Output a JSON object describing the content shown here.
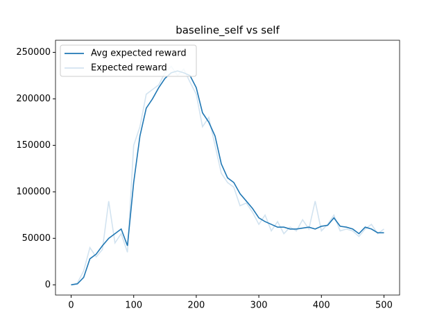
{
  "chart_data": {
    "type": "line",
    "title": "baseline_self vs self",
    "x": [
      0,
      10,
      20,
      30,
      40,
      50,
      60,
      70,
      80,
      90,
      100,
      110,
      120,
      130,
      140,
      150,
      160,
      170,
      180,
      190,
      200,
      210,
      220,
      230,
      240,
      250,
      260,
      270,
      280,
      290,
      300,
      310,
      320,
      330,
      340,
      350,
      360,
      370,
      380,
      390,
      400,
      410,
      420,
      430,
      440,
      450,
      460,
      470,
      480,
      490,
      500
    ],
    "series": [
      {
        "name": "Avg expected reward",
        "color": "#1f77b4",
        "values": [
          0,
          1000,
          8000,
          28000,
          33000,
          42000,
          50000,
          55000,
          60000,
          42000,
          110000,
          160000,
          190000,
          200000,
          212000,
          222000,
          228000,
          230000,
          228000,
          225000,
          212000,
          185000,
          175000,
          160000,
          130000,
          115000,
          110000,
          98000,
          90000,
          82000,
          72000,
          68000,
          65000,
          62000,
          62000,
          60000,
          60000,
          61000,
          62000,
          60000,
          63000,
          64000,
          72000,
          63000,
          62000,
          60000,
          55000,
          62000,
          60000,
          56000,
          56000
        ]
      },
      {
        "name": "Expected reward",
        "color": "#d2e3f0",
        "values": [
          0,
          2000,
          15000,
          40000,
          30000,
          38000,
          90000,
          45000,
          55000,
          35000,
          150000,
          170000,
          205000,
          210000,
          215000,
          228000,
          235000,
          225000,
          232000,
          218000,
          205000,
          170000,
          180000,
          150000,
          120000,
          110000,
          105000,
          85000,
          88000,
          78000,
          65000,
          75000,
          58000,
          68000,
          55000,
          62000,
          58000,
          70000,
          60000,
          90000,
          58000,
          65000,
          75000,
          58000,
          60000,
          58000,
          52000,
          60000,
          65000,
          55000,
          60000
        ]
      }
    ],
    "xlim": [
      -25,
      525
    ],
    "xticks": [
      0,
      100,
      200,
      300,
      400,
      500
    ],
    "ylim": [
      -11000,
      263000
    ],
    "yticks": [
      0,
      50000,
      100000,
      150000,
      200000,
      250000
    ],
    "legend": "upper left"
  }
}
